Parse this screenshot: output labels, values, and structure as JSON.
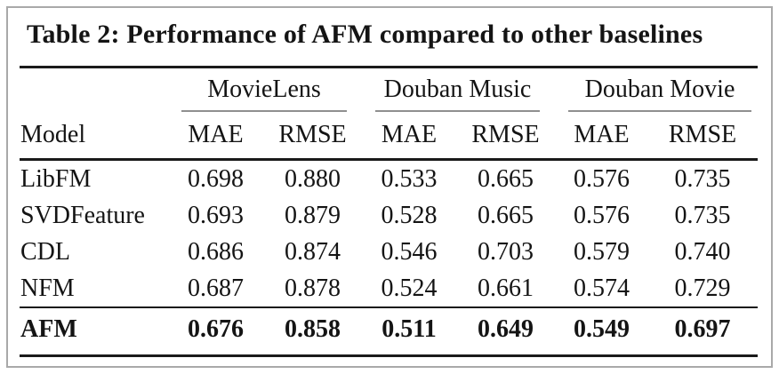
{
  "table": {
    "title": "Table 2: Performance of AFM compared to other baselines",
    "model_header": "Model",
    "groups": [
      {
        "label": "MovieLens",
        "metrics": [
          "MAE",
          "RMSE"
        ]
      },
      {
        "label": "Douban Music",
        "metrics": [
          "MAE",
          "RMSE"
        ]
      },
      {
        "label": "Douban Movie",
        "metrics": [
          "MAE",
          "RMSE"
        ]
      }
    ],
    "rows": [
      {
        "model": "LibFM",
        "values": [
          "0.698",
          "0.880",
          "0.533",
          "0.665",
          "0.576",
          "0.735"
        ]
      },
      {
        "model": "SVDFeature",
        "values": [
          "0.693",
          "0.879",
          "0.528",
          "0.665",
          "0.576",
          "0.735"
        ]
      },
      {
        "model": "CDL",
        "values": [
          "0.686",
          "0.874",
          "0.546",
          "0.703",
          "0.579",
          "0.740"
        ]
      },
      {
        "model": "NFM",
        "values": [
          "0.687",
          "0.878",
          "0.524",
          "0.661",
          "0.574",
          "0.729"
        ]
      },
      {
        "model": "AFM",
        "values": [
          "0.676",
          "0.858",
          "0.511",
          "0.649",
          "0.549",
          "0.697"
        ]
      }
    ],
    "colors": {
      "text": "#141414",
      "rule_dark": "#1a1a1a",
      "rule_light": "#8f8f8f",
      "frame_border": "#a9a9a9",
      "background": "#ffffff"
    }
  },
  "chart_data": {
    "type": "table",
    "title": "Table 2: Performance of AFM compared to other baselines",
    "column_groups": [
      "MovieLens",
      "Douban Music",
      "Douban Movie"
    ],
    "columns": [
      "Model",
      "MovieLens MAE",
      "MovieLens RMSE",
      "Douban Music MAE",
      "Douban Music RMSE",
      "Douban Movie MAE",
      "Douban Movie RMSE"
    ],
    "rows": [
      [
        "LibFM",
        0.698,
        0.88,
        0.533,
        0.665,
        0.576,
        0.735
      ],
      [
        "SVDFeature",
        0.693,
        0.879,
        0.528,
        0.665,
        0.576,
        0.735
      ],
      [
        "CDL",
        0.686,
        0.874,
        0.546,
        0.703,
        0.579,
        0.74
      ],
      [
        "NFM",
        0.687,
        0.878,
        0.524,
        0.661,
        0.574,
        0.729
      ],
      [
        "AFM",
        0.676,
        0.858,
        0.511,
        0.649,
        0.549,
        0.697
      ]
    ],
    "bold_row": "AFM"
  }
}
